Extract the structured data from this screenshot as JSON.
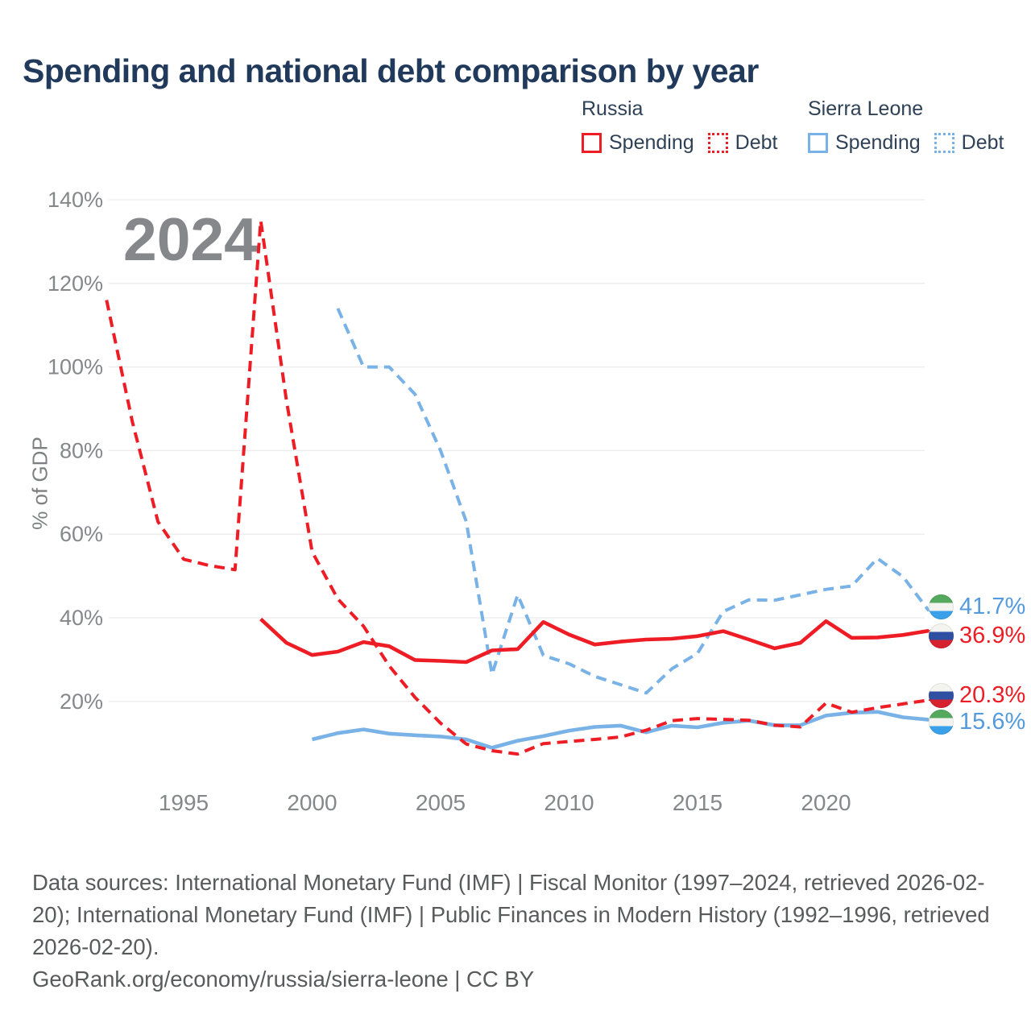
{
  "title": "Spending and national debt comparison by year",
  "watermark": "2024",
  "legend": {
    "groups": [
      {
        "country": "Russia",
        "items": [
          {
            "label": "Spending",
            "style": "solid",
            "color": "#ee1c24"
          },
          {
            "label": "Debt",
            "style": "dashed",
            "color": "#ee1c24"
          }
        ]
      },
      {
        "country": "Sierra Leone",
        "items": [
          {
            "label": "Spending",
            "style": "solid",
            "color": "#79b2e6"
          },
          {
            "label": "Debt",
            "style": "dashed",
            "color": "#79b2e6"
          }
        ]
      }
    ]
  },
  "chart_data": {
    "type": "line",
    "title": "Spending and national debt comparison by year",
    "xlabel": "",
    "ylabel": "% of GDP",
    "x_ticks": [
      1995,
      2000,
      2005,
      2010,
      2015,
      2020
    ],
    "y_ticks_percent": [
      20,
      40,
      60,
      80,
      100,
      120,
      140
    ],
    "x_range": [
      1992,
      2024
    ],
    "ylim": [
      0,
      145
    ],
    "grid": "horizontal",
    "legend_position": "top-right",
    "series": [
      {
        "name": "Sierra Leone Debt",
        "country": "Sierra Leone",
        "metric": "Debt",
        "style": "dashed",
        "color": "#79b2e6",
        "points": [
          [
            2001,
            114
          ],
          [
            2002,
            100
          ],
          [
            2003,
            100
          ],
          [
            2004,
            93.5
          ],
          [
            2005,
            80
          ],
          [
            2006,
            63
          ],
          [
            2007,
            26.5
          ],
          [
            2008,
            45.5
          ],
          [
            2009,
            31
          ],
          [
            2010,
            29
          ],
          [
            2011,
            26
          ],
          [
            2012,
            24
          ],
          [
            2013,
            22
          ],
          [
            2014,
            27.8
          ],
          [
            2015,
            31.5
          ],
          [
            2016,
            41.5
          ],
          [
            2017,
            44.3
          ],
          [
            2018,
            44.2
          ],
          [
            2019,
            45.5
          ],
          [
            2020,
            46.8
          ],
          [
            2021,
            47.6
          ],
          [
            2022,
            54.2
          ],
          [
            2023,
            49.8
          ],
          [
            2024,
            41.7
          ]
        ]
      },
      {
        "name": "Sierra Leone Spending",
        "country": "Sierra Leone",
        "metric": "Spending",
        "style": "solid",
        "color": "#79b2e6",
        "points": [
          [
            2000,
            10.9
          ],
          [
            2001,
            12.4
          ],
          [
            2002,
            13.3
          ],
          [
            2003,
            12.3
          ],
          [
            2004,
            11.9
          ],
          [
            2005,
            11.6
          ],
          [
            2006,
            10.9
          ],
          [
            2007,
            8.9
          ],
          [
            2008,
            10.6
          ],
          [
            2009,
            11.7
          ],
          [
            2010,
            13.0
          ],
          [
            2011,
            13.9
          ],
          [
            2012,
            14.2
          ],
          [
            2013,
            12.6
          ],
          [
            2014,
            14.2
          ],
          [
            2015,
            13.8
          ],
          [
            2016,
            14.9
          ],
          [
            2017,
            15.4
          ],
          [
            2018,
            14.3
          ],
          [
            2019,
            14.3
          ],
          [
            2020,
            16.6
          ],
          [
            2021,
            17.3
          ],
          [
            2022,
            17.5
          ],
          [
            2023,
            16.2
          ],
          [
            2024,
            15.6
          ]
        ]
      },
      {
        "name": "Russia Debt",
        "country": "Russia",
        "metric": "Debt",
        "style": "dashed",
        "color": "#ee1c24",
        "points": [
          [
            1992,
            116
          ],
          [
            1993,
            87
          ],
          [
            1994,
            63
          ],
          [
            1995,
            54
          ],
          [
            1996,
            52.5
          ],
          [
            1997,
            51.5
          ],
          [
            1998,
            135
          ],
          [
            1999,
            92
          ],
          [
            2000,
            55.8
          ],
          [
            2001,
            44.5
          ],
          [
            2002,
            38
          ],
          [
            2003,
            28.5
          ],
          [
            2004,
            21
          ],
          [
            2005,
            14.8
          ],
          [
            2006,
            9.8
          ],
          [
            2007,
            8.2
          ],
          [
            2008,
            7.4
          ],
          [
            2009,
            9.9
          ],
          [
            2010,
            10.4
          ],
          [
            2011,
            10.9
          ],
          [
            2012,
            11.5
          ],
          [
            2013,
            13.1
          ],
          [
            2014,
            15.4
          ],
          [
            2015,
            15.9
          ],
          [
            2016,
            15.7
          ],
          [
            2017,
            15.5
          ],
          [
            2018,
            14.3
          ],
          [
            2019,
            13.9
          ],
          [
            2020,
            19.6
          ],
          [
            2021,
            17.4
          ],
          [
            2022,
            18.5
          ],
          [
            2023,
            19.4
          ],
          [
            2024,
            20.3
          ]
        ]
      },
      {
        "name": "Russia Spending",
        "country": "Russia",
        "metric": "Spending",
        "style": "solid",
        "color": "#ee1c24",
        "points": [
          [
            1998,
            39.7
          ],
          [
            1999,
            34.0
          ],
          [
            2000,
            31.1
          ],
          [
            2001,
            31.9
          ],
          [
            2002,
            34.2
          ],
          [
            2003,
            33.2
          ],
          [
            2004,
            29.9
          ],
          [
            2005,
            29.7
          ],
          [
            2006,
            29.4
          ],
          [
            2007,
            32.2
          ],
          [
            2008,
            32.5
          ],
          [
            2009,
            39.0
          ],
          [
            2010,
            36.0
          ],
          [
            2011,
            33.6
          ],
          [
            2012,
            34.3
          ],
          [
            2013,
            34.8
          ],
          [
            2014,
            35.0
          ],
          [
            2015,
            35.6
          ],
          [
            2016,
            36.8
          ],
          [
            2017,
            34.8
          ],
          [
            2018,
            32.7
          ],
          [
            2019,
            34.0
          ],
          [
            2020,
            39.2
          ],
          [
            2021,
            35.2
          ],
          [
            2022,
            35.3
          ],
          [
            2023,
            35.9
          ],
          [
            2024,
            36.9
          ]
        ]
      }
    ]
  },
  "end_labels": [
    {
      "text": "41.7%",
      "series": "Sierra Leone Debt",
      "flag": "sierra_leone",
      "color": "#549add"
    },
    {
      "text": "36.9%",
      "series": "Russia Spending",
      "flag": "russia",
      "color": "#ee1c24"
    },
    {
      "text": "20.3%",
      "series": "Russia Debt",
      "flag": "russia",
      "color": "#ee1c24"
    },
    {
      "text": "15.6%",
      "series": "Sierra Leone Spending",
      "flag": "sierra_leone",
      "color": "#549add"
    }
  ],
  "flags": {
    "russia": [
      "#f3f3f0",
      "#2e4fa2",
      "#d6212e"
    ],
    "sierra_leone": [
      "#55a95e",
      "#f3f3f0",
      "#3aa0e9"
    ]
  },
  "footer": {
    "sources": "Data sources: International Monetary Fund (IMF) | Fiscal Monitor (1997–2024, retrieved 2026-02-20); International Monetary Fund (IMF) | Public Finances in Modern History (1992–1996, retrieved 2026-02-20).",
    "credit": "GeoRank.org/economy/russia/sierra-leone | CC BY"
  }
}
